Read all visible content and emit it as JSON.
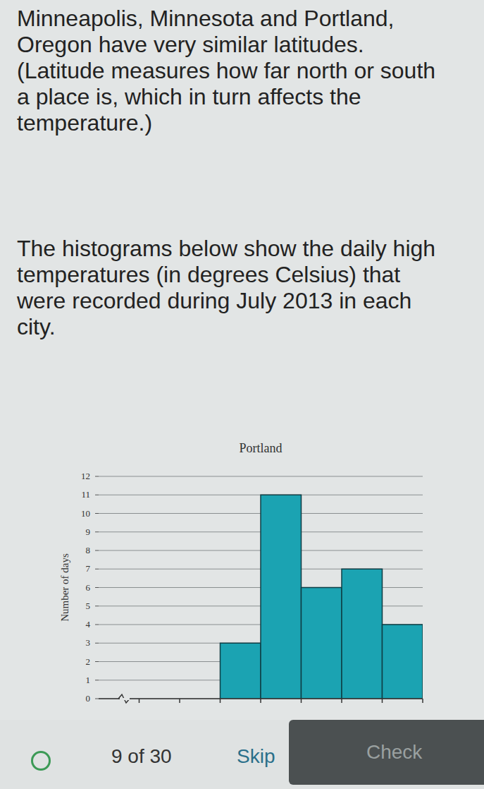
{
  "page": {
    "paragraphs": [
      "Minneapolis, Minnesota and Portland, Oregon have very similar latitudes. (Latitude measures how far north or south a place is, which in turn affects the temperature.)",
      "The histograms below show the daily high temperatures (in degrees Celsius) that were recorded during July 2013 in each city."
    ],
    "footer": {
      "progress": "9 of 30",
      "skip": "Skip",
      "check": "Check"
    }
  },
  "chart_data": {
    "type": "histogram",
    "title": "Portland",
    "y_label": "Number of days",
    "bins": [
      24,
      26,
      28,
      30,
      32,
      34
    ],
    "values": [
      3,
      11,
      6,
      7,
      4
    ],
    "color": "#1ba3b2",
    "xlim": [
      18,
      34
    ],
    "xticks": [
      20,
      22,
      24,
      26,
      28,
      30,
      32,
      34
    ],
    "ylim": [
      0,
      12
    ],
    "yticks": [
      0,
      1,
      2,
      3,
      4,
      5,
      6,
      7,
      8,
      9,
      10,
      11,
      12
    ],
    "grid": true,
    "tick_labels": "y"
  }
}
